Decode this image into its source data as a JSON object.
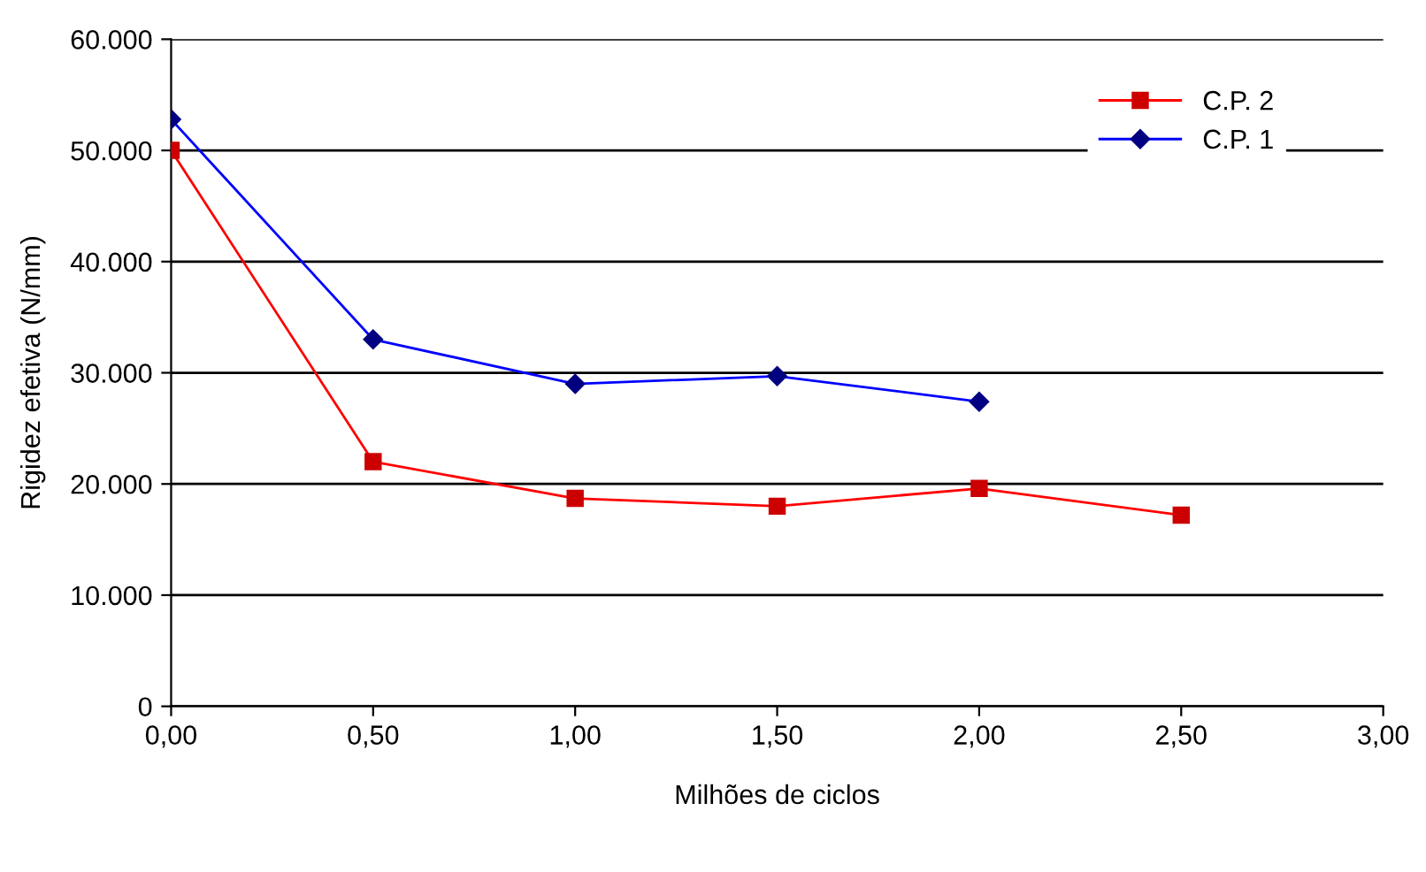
{
  "chart_data": {
    "type": "line",
    "xlabel": "Milhões de ciclos",
    "ylabel": "Rigidez efetiva (N/mm)",
    "xlim": [
      0,
      3
    ],
    "xticks": [
      {
        "value": 0,
        "label": "0,00"
      },
      {
        "value": 0.5,
        "label": "0,50"
      },
      {
        "value": 1,
        "label": "1,00"
      },
      {
        "value": 1.5,
        "label": "1,50"
      },
      {
        "value": 2,
        "label": "2,00"
      },
      {
        "value": 2.5,
        "label": "2,50"
      },
      {
        "value": 3,
        "label": "3,00"
      }
    ],
    "ylim": [
      0,
      60000
    ],
    "yticks": [
      0,
      {
        "value": 10000,
        "label": "10.000"
      },
      {
        "value": 20000,
        "label": "20.000"
      },
      {
        "value": 30000,
        "label": "30.000"
      },
      {
        "value": 40000,
        "label": "40.000"
      },
      {
        "value": 50000,
        "label": "50.000"
      },
      {
        "value": 60000,
        "label": "60.000"
      }
    ],
    "grid": "y",
    "legend": "top right",
    "series": [
      {
        "name": "C.P. 2",
        "color": "#ff0000",
        "marker": "square",
        "x": [
          0,
          0.5,
          1,
          1.5,
          2,
          2.5
        ],
        "values": [
          50000,
          22000,
          18700,
          18000,
          19600,
          17200
        ]
      },
      {
        "name": "C.P. 1",
        "color": "#0000ff",
        "marker": "diamond",
        "x": [
          0,
          0.5,
          1,
          1.5,
          2
        ],
        "values": [
          52800,
          33000,
          29000,
          29700,
          27400
        ]
      }
    ]
  }
}
